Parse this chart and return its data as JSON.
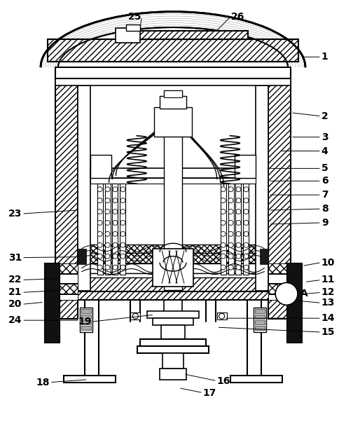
{
  "bg_color": "#ffffff",
  "line_color": "#000000",
  "fig_w": 4.94,
  "fig_h": 6.18,
  "dpi": 100
}
